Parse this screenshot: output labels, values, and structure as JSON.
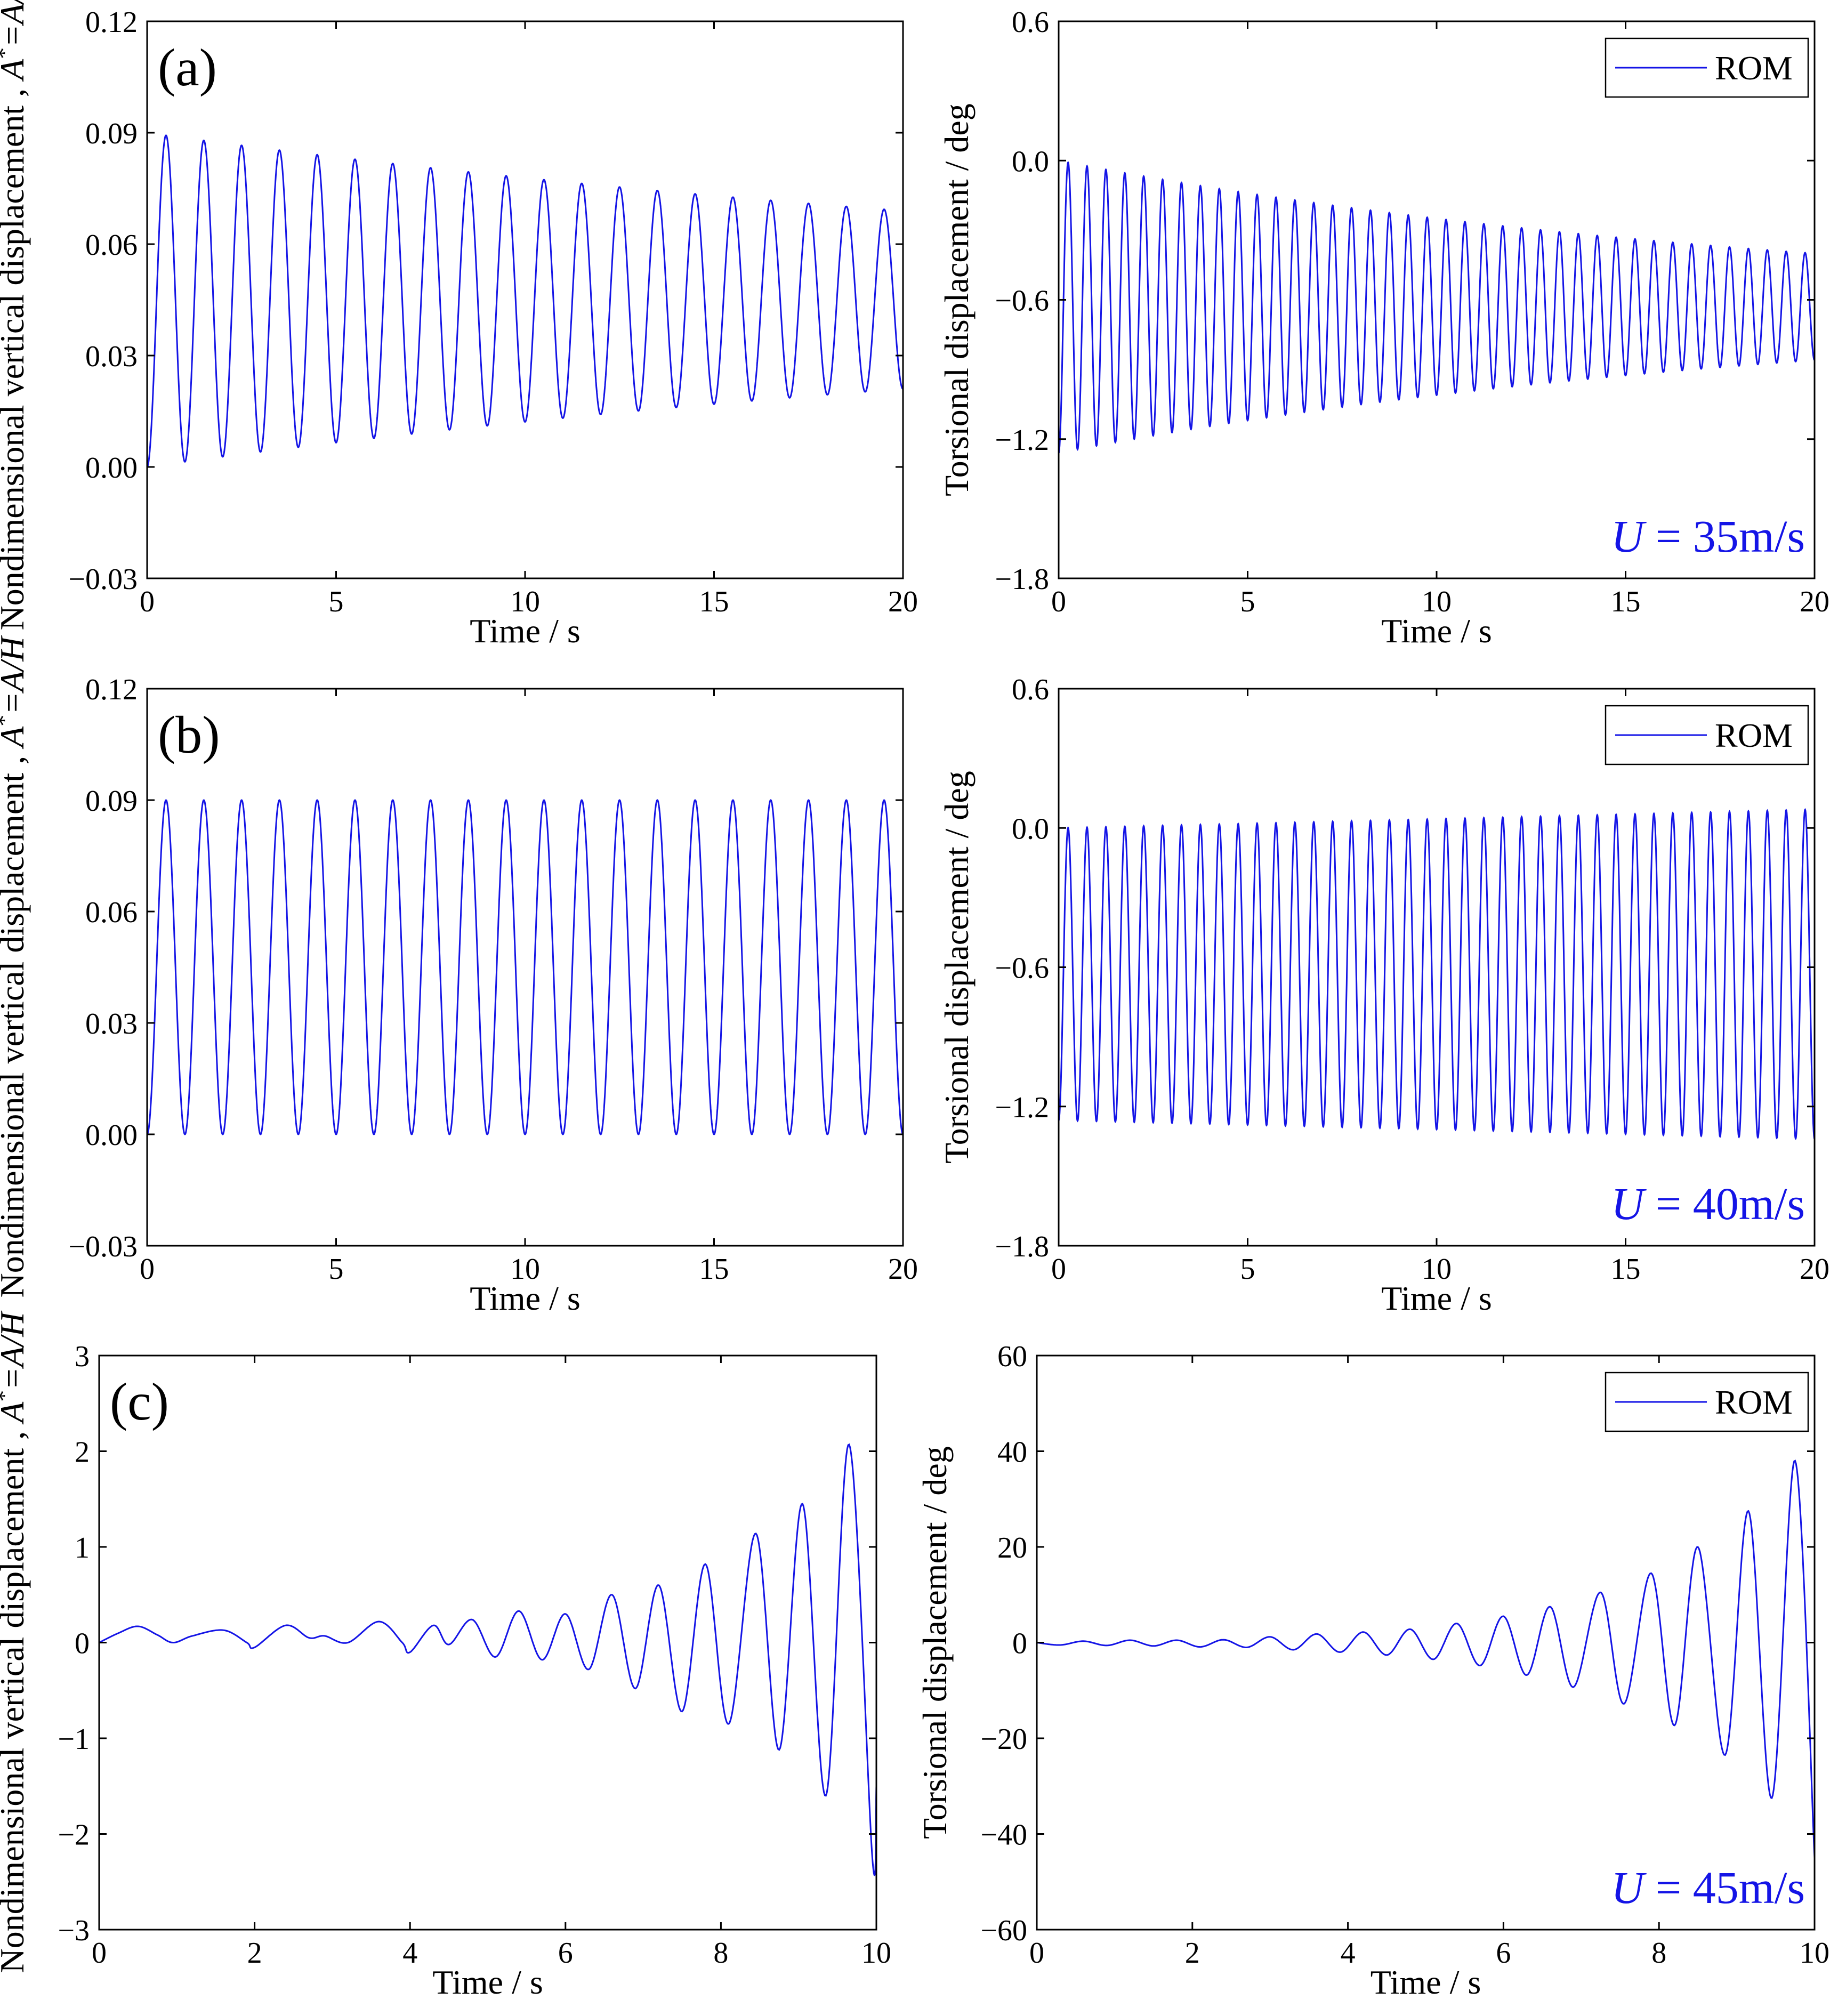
{
  "figure": {
    "panels": [
      {
        "id": "a",
        "tag": "(a)",
        "row": 0,
        "side": "left",
        "y_title_pre": "Nondimensional vertical displacement , ",
        "y_title_var": "A",
        "y_title_sup": "*",
        "y_title_post": "=A/H"
      },
      {
        "id": "a-torsion",
        "row": 0,
        "side": "right",
        "y_title_plain": "Torsional displacement / deg",
        "legend": "ROM",
        "speed_u": "U",
        "speed_rest": " = 35m/s"
      },
      {
        "id": "b",
        "tag": "(b)",
        "row": 1,
        "side": "left",
        "y_title_pre": "Nondimensional vertical displacement , ",
        "y_title_var": "A",
        "y_title_sup": "*",
        "y_title_post": "=A/H"
      },
      {
        "id": "b-torsion",
        "row": 1,
        "side": "right",
        "y_title_plain": "Torsional displacement / deg",
        "legend": "ROM",
        "speed_u": "U",
        "speed_rest": " = 40m/s"
      },
      {
        "id": "c",
        "tag": "(c)",
        "row": 2,
        "side": "left",
        "y_title_pre": "Nondimensional vertical displacement , ",
        "y_title_var": "A",
        "y_title_sup": "*",
        "y_title_post": "=A/H"
      },
      {
        "id": "c-torsion",
        "row": 2,
        "side": "right",
        "y_title_plain": "Torsional displacement / deg",
        "legend": "ROM",
        "speed_u": "U",
        "speed_rest": " = 45m/s"
      }
    ],
    "series_color": "#1414e6"
  },
  "chart_data": [
    {
      "type": "line",
      "panel": "(a)",
      "series_name": "ROM",
      "xlabel": "Time / s",
      "ylabel": "Nondimensional vertical displacement , A*=A/H",
      "xlim": [
        0,
        20
      ],
      "ylim": [
        -0.03,
        0.12
      ],
      "xticks": [
        0,
        5,
        10,
        15,
        20
      ],
      "xtick_labels": [
        "0",
        "5",
        "10",
        "15",
        "20"
      ],
      "yticks": [
        -0.03,
        0.0,
        0.03,
        0.06,
        0.09,
        0.12
      ],
      "ytick_labels": [
        "−0.03",
        "0.00",
        "0.03",
        "0.06",
        "0.09",
        "0.12"
      ],
      "model": {
        "kind": "damped",
        "period": 1.0,
        "mean_start": 0.045,
        "amp_start": 0.045,
        "mean_end": 0.045,
        "amp_end": 0.024
      }
    },
    {
      "type": "line",
      "panel": "(a) torsion",
      "series_name": "ROM",
      "xlabel": "Time / s",
      "ylabel": "Torsional displacement / deg",
      "xlim": [
        0,
        20
      ],
      "ylim": [
        -1.8,
        0.6
      ],
      "xticks": [
        0,
        5,
        10,
        15,
        20
      ],
      "xtick_labels": [
        "0",
        "5",
        "10",
        "15",
        "20"
      ],
      "yticks": [
        -1.8,
        -1.2,
        -0.6,
        0.0,
        0.6
      ],
      "ytick_labels": [
        "−1.8",
        "−1.2",
        "−0.6",
        "0.0",
        "0.6"
      ],
      "model": {
        "kind": "damped",
        "period": 0.5,
        "mean_start": -0.63,
        "amp_start": 0.63,
        "mean_end": -0.63,
        "amp_end": 0.23
      }
    },
    {
      "type": "line",
      "panel": "(b)",
      "series_name": "ROM",
      "xlabel": "Time / s",
      "ylabel": "Nondimensional vertical displacement , A*=A/H",
      "xlim": [
        0,
        20
      ],
      "ylim": [
        -0.03,
        0.12
      ],
      "xticks": [
        0,
        5,
        10,
        15,
        20
      ],
      "xtick_labels": [
        "0",
        "5",
        "10",
        "15",
        "20"
      ],
      "yticks": [
        -0.03,
        0.0,
        0.03,
        0.06,
        0.09,
        0.12
      ],
      "ytick_labels": [
        "−0.03",
        "0.00",
        "0.03",
        "0.06",
        "0.09",
        "0.12"
      ],
      "model": {
        "kind": "damped",
        "period": 1.0,
        "mean_start": 0.045,
        "amp_start": 0.045,
        "mean_end": 0.045,
        "amp_end": 0.045
      }
    },
    {
      "type": "line",
      "panel": "(b) torsion",
      "series_name": "ROM",
      "xlabel": "Time / s",
      "ylabel": "Torsional displacement / deg",
      "xlim": [
        0,
        20
      ],
      "ylim": [
        -1.8,
        0.6
      ],
      "xticks": [
        0,
        5,
        10,
        15,
        20
      ],
      "xtick_labels": [
        "0",
        "5",
        "10",
        "15",
        "20"
      ],
      "yticks": [
        -1.8,
        -1.2,
        -0.6,
        0.0,
        0.6
      ],
      "ytick_labels": [
        "−1.8",
        "−1.2",
        "−0.6",
        "0.0",
        "0.6"
      ],
      "model": {
        "kind": "damped",
        "period": 0.5,
        "mean_start": -0.63,
        "amp_start": 0.63,
        "mean_end": -0.63,
        "amp_end": 0.71
      }
    },
    {
      "type": "line",
      "panel": "(c)",
      "series_name": "ROM",
      "xlabel": "Time / s",
      "ylabel": "Nondimensional vertical displacement , A*=A/H",
      "xlim": [
        0,
        10
      ],
      "ylim": [
        -3,
        3
      ],
      "xticks": [
        0,
        2,
        4,
        6,
        8,
        10
      ],
      "xtick_labels": [
        "0",
        "2",
        "4",
        "6",
        "8",
        "10"
      ],
      "yticks": [
        -3,
        -2,
        -1,
        0,
        1,
        2,
        3
      ],
      "ytick_labels": [
        "−3",
        "−2",
        "−1",
        "0",
        "1",
        "2",
        "3"
      ],
      "model": {
        "kind": "points",
        "points": [
          [
            0,
            0
          ],
          [
            0.25,
            0.1
          ],
          [
            0.5,
            0.17
          ],
          [
            0.75,
            0.08
          ],
          [
            0.95,
            0.0
          ],
          [
            1.2,
            0.07
          ],
          [
            1.6,
            0.13
          ],
          [
            1.9,
            0.0
          ],
          [
            2.0,
            -0.05
          ],
          [
            2.4,
            0.18
          ],
          [
            2.7,
            0.05
          ],
          [
            2.9,
            0.07
          ],
          [
            3.2,
            0.0
          ],
          [
            3.6,
            0.22
          ],
          [
            3.9,
            0.0
          ],
          [
            4.0,
            -0.1
          ],
          [
            4.3,
            0.18
          ],
          [
            4.5,
            -0.02
          ],
          [
            4.8,
            0.24
          ],
          [
            5.1,
            -0.15
          ],
          [
            5.4,
            0.33
          ],
          [
            5.7,
            -0.18
          ],
          [
            6.0,
            0.3
          ],
          [
            6.3,
            -0.28
          ],
          [
            6.6,
            0.5
          ],
          [
            6.9,
            -0.48
          ],
          [
            7.2,
            0.6
          ],
          [
            7.5,
            -0.72
          ],
          [
            7.8,
            0.82
          ],
          [
            8.1,
            -0.85
          ],
          [
            8.45,
            1.14
          ],
          [
            8.75,
            -1.12
          ],
          [
            9.05,
            1.45
          ],
          [
            9.35,
            -1.6
          ],
          [
            9.65,
            2.07
          ],
          [
            9.95,
            -2.27
          ],
          [
            10.0,
            -1.5
          ]
        ]
      }
    },
    {
      "type": "line",
      "panel": "(c) torsion",
      "series_name": "ROM",
      "xlabel": "Time / s",
      "ylabel": "Torsional displacement / deg",
      "xlim": [
        0,
        10
      ],
      "ylim": [
        -60,
        60
      ],
      "xticks": [
        0,
        2,
        4,
        6,
        8,
        10
      ],
      "xtick_labels": [
        "0",
        "2",
        "4",
        "6",
        "8",
        "10"
      ],
      "yticks": [
        -60,
        -40,
        -20,
        0,
        20,
        40,
        60
      ],
      "ytick_labels": [
        "−60",
        "−40",
        "−20",
        "0",
        "20",
        "40",
        "60"
      ],
      "model": {
        "kind": "points",
        "points": [
          [
            0,
            0
          ],
          [
            0.3,
            -0.5
          ],
          [
            0.6,
            0.3
          ],
          [
            0.9,
            -0.6
          ],
          [
            1.2,
            0.5
          ],
          [
            1.5,
            -0.7
          ],
          [
            1.8,
            0.5
          ],
          [
            2.1,
            -0.9
          ],
          [
            2.4,
            0.6
          ],
          [
            2.7,
            -1.0
          ],
          [
            3.0,
            1.2
          ],
          [
            3.3,
            -1.5
          ],
          [
            3.6,
            1.8
          ],
          [
            3.9,
            -2.0
          ],
          [
            4.2,
            2.2
          ],
          [
            4.5,
            -2.6
          ],
          [
            4.8,
            2.8
          ],
          [
            5.1,
            -3.5
          ],
          [
            5.4,
            4.0
          ],
          [
            5.7,
            -4.8
          ],
          [
            6.0,
            5.5
          ],
          [
            6.3,
            -6.8
          ],
          [
            6.6,
            7.5
          ],
          [
            6.9,
            -9.3
          ],
          [
            7.25,
            10.5
          ],
          [
            7.55,
            -12.8
          ],
          [
            7.9,
            14.5
          ],
          [
            8.2,
            -17.3
          ],
          [
            8.5,
            20.0
          ],
          [
            8.85,
            -23.5
          ],
          [
            9.15,
            27.5
          ],
          [
            9.45,
            -32.5
          ],
          [
            9.75,
            38.0
          ],
          [
            10.0,
            -45.0
          ]
        ]
      }
    }
  ]
}
